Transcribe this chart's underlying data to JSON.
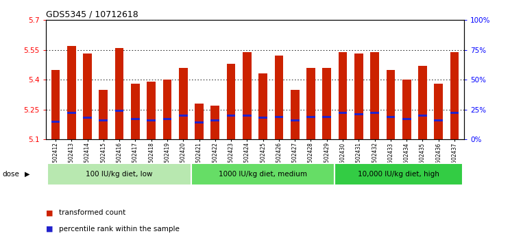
{
  "title": "GDS5345 / 10712618",
  "samples": [
    "GSM1502412",
    "GSM1502413",
    "GSM1502414",
    "GSM1502415",
    "GSM1502416",
    "GSM1502417",
    "GSM1502418",
    "GSM1502419",
    "GSM1502420",
    "GSM1502421",
    "GSM1502422",
    "GSM1502423",
    "GSM1502424",
    "GSM1502425",
    "GSM1502426",
    "GSM1502427",
    "GSM1502428",
    "GSM1502429",
    "GSM1502430",
    "GSM1502431",
    "GSM1502432",
    "GSM1502433",
    "GSM1502434",
    "GSM1502435",
    "GSM1502436",
    "GSM1502437"
  ],
  "transformed_counts": [
    5.45,
    5.57,
    5.53,
    5.35,
    5.56,
    5.38,
    5.39,
    5.4,
    5.46,
    5.28,
    5.27,
    5.48,
    5.54,
    5.43,
    5.52,
    5.35,
    5.46,
    5.46,
    5.54,
    5.53,
    5.54,
    5.45,
    5.4,
    5.47,
    5.38,
    5.54
  ],
  "percentile_ranks": [
    15,
    22,
    18,
    16,
    24,
    17,
    16,
    17,
    20,
    14,
    16,
    20,
    20,
    18,
    19,
    16,
    19,
    19,
    22,
    21,
    22,
    19,
    17,
    20,
    16,
    22
  ],
  "groups": [
    {
      "label": "100 IU/kg diet, low",
      "start": 0,
      "end": 9,
      "color": "#b8e8b0"
    },
    {
      "label": "1000 IU/kg diet, medium",
      "start": 9,
      "end": 18,
      "color": "#66dd66"
    },
    {
      "label": "10,000 IU/kg diet, high",
      "start": 18,
      "end": 26,
      "color": "#33cc44"
    }
  ],
  "ylim_left": [
    5.1,
    5.7
  ],
  "ylim_right": [
    0,
    100
  ],
  "yticks_left": [
    5.1,
    5.25,
    5.4,
    5.55,
    5.7
  ],
  "yticks_right": [
    0,
    25,
    50,
    75,
    100
  ],
  "bar_color": "#cc2200",
  "percentile_color": "#2222cc",
  "plot_bg": "#ffffff",
  "bar_bottom": 5.1,
  "bar_width": 0.55,
  "xtick_bg": "#d8d8d8"
}
